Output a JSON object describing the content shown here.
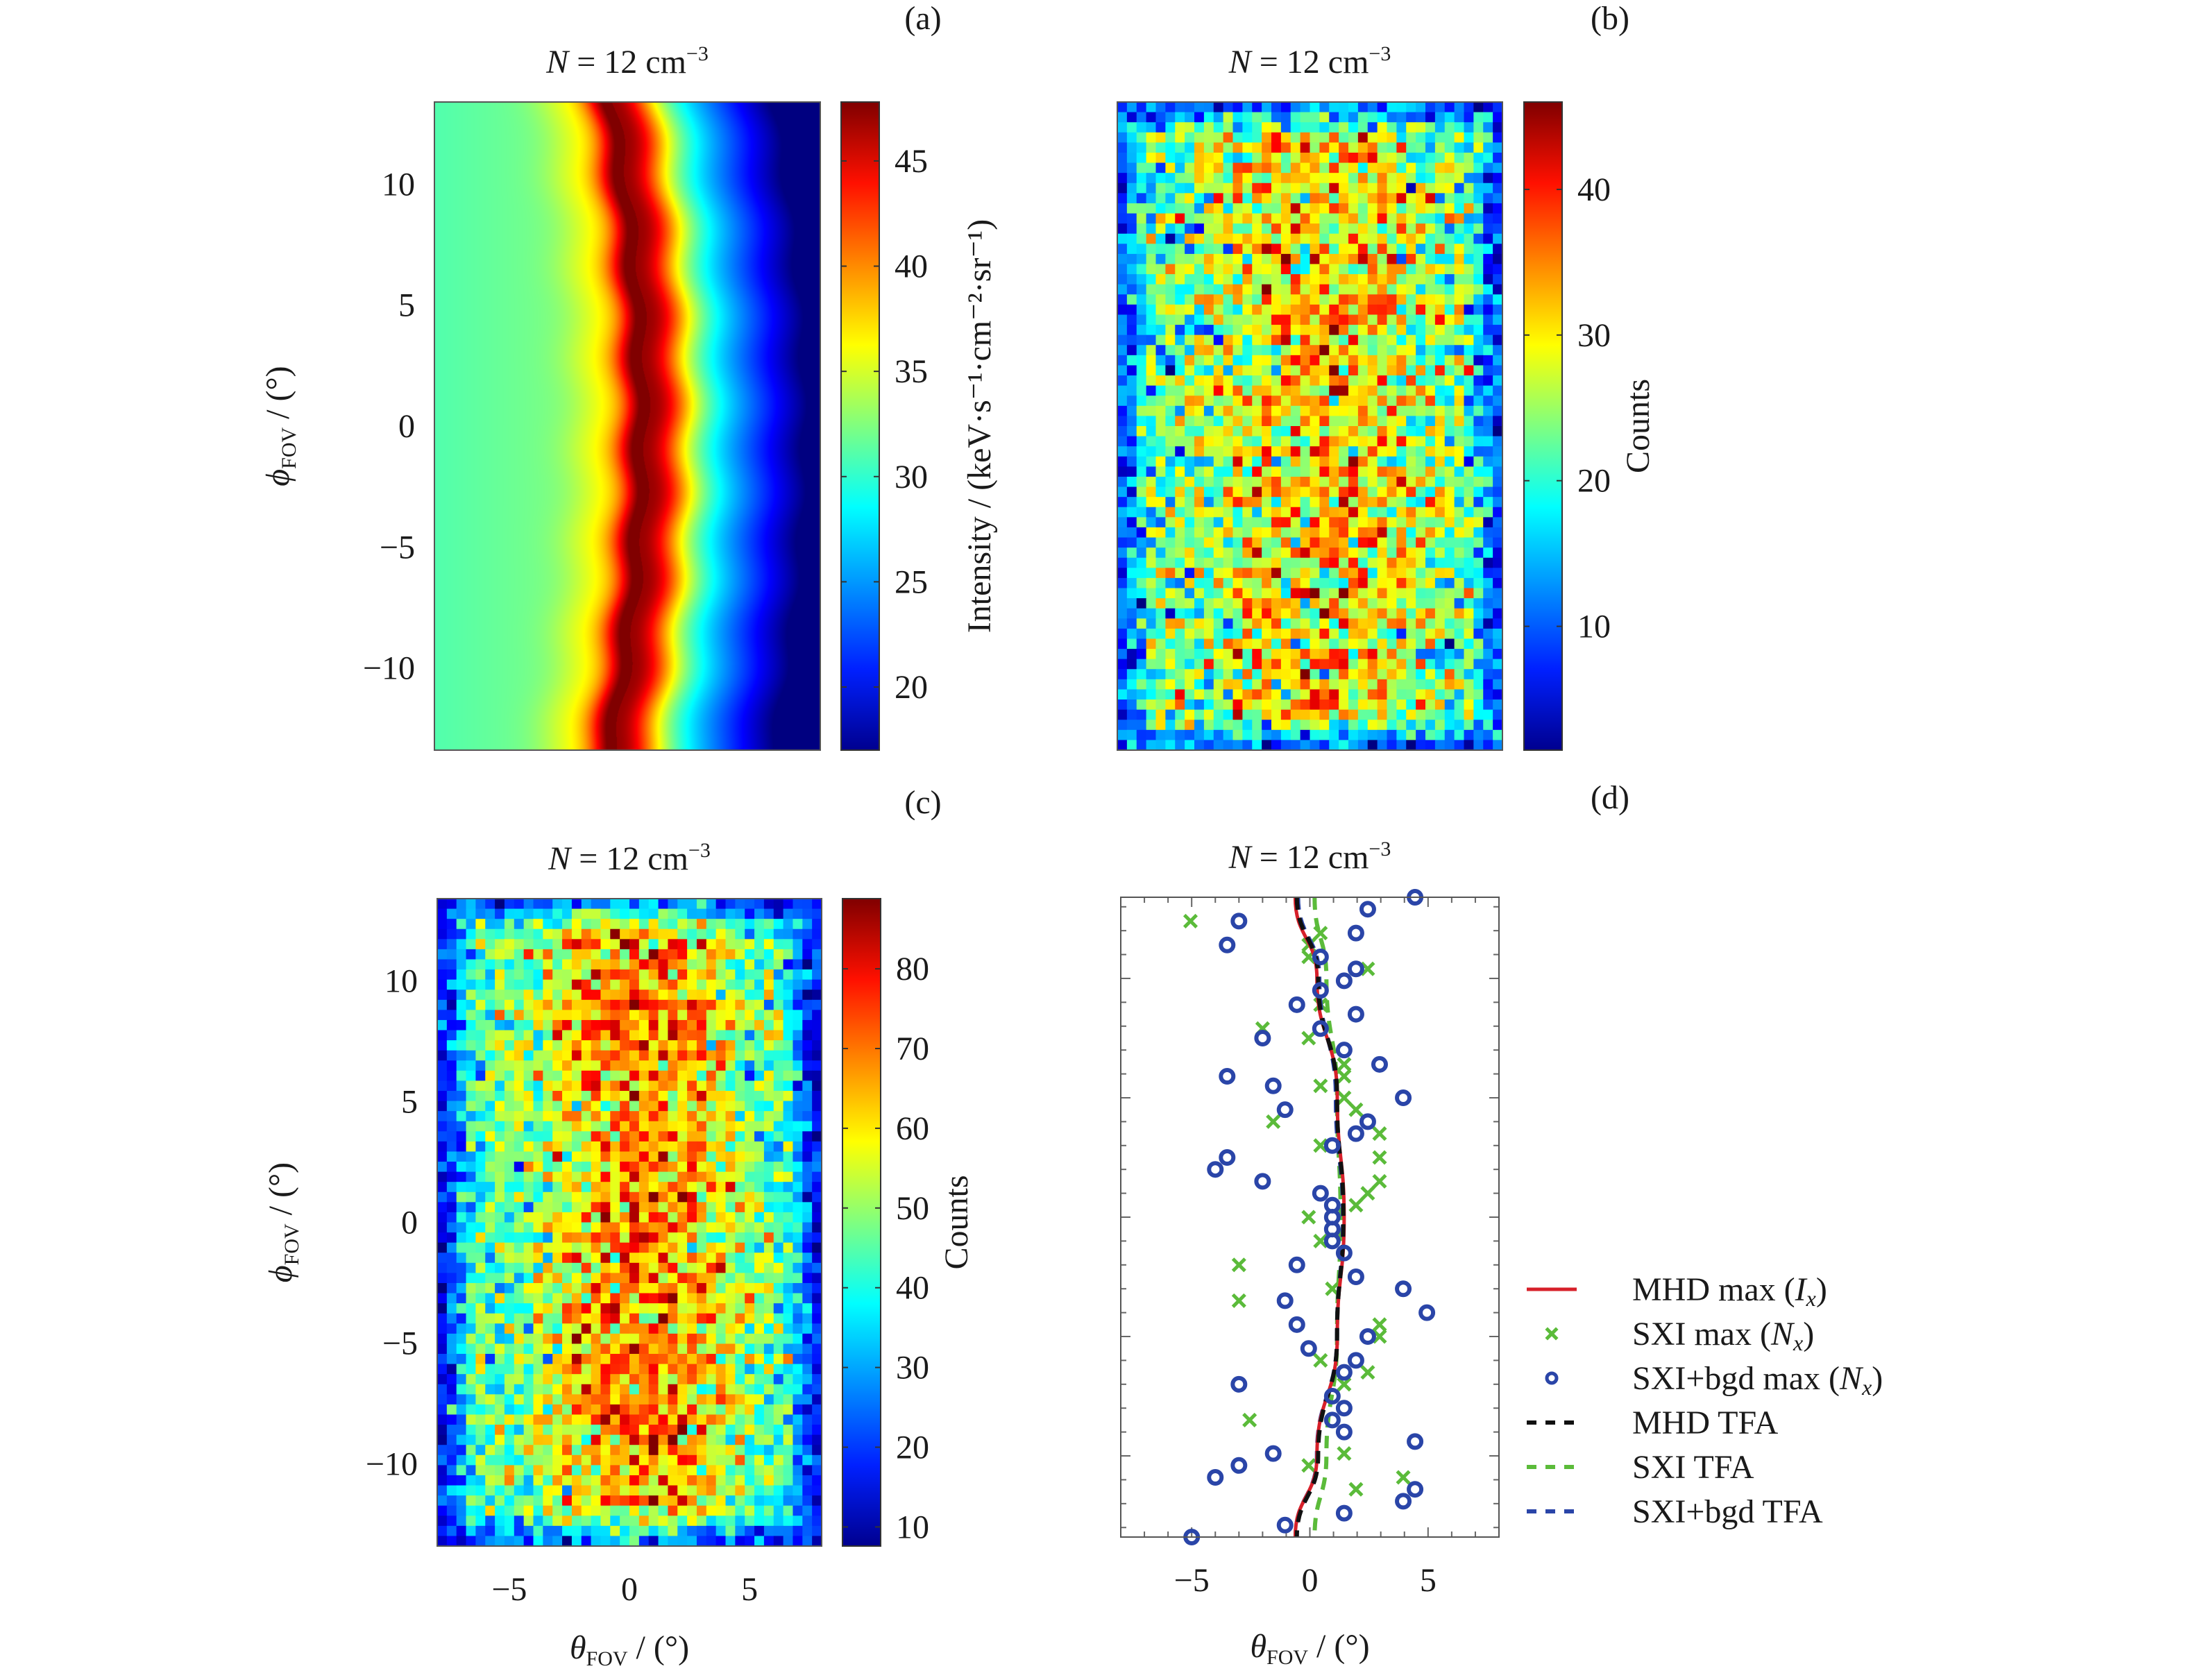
{
  "chart_data": [
    {
      "panel_label": "(a)",
      "type": "heatmap",
      "title": {
        "var": "N",
        "text": " = 12 cm",
        "sup": "−3"
      },
      "xlim": [
        -8,
        8
      ],
      "ylim": [
        -13.4,
        13.4
      ],
      "yticks": [
        10,
        5,
        0,
        -5,
        -10
      ],
      "ylabel": {
        "sym": "ϕ",
        "sub": "FOV",
        "rest": " / (°)"
      },
      "colormap": "jet",
      "colorbar": {
        "range": [
          17,
          47.8
        ],
        "ticks": [
          45,
          40,
          35,
          30,
          25,
          20
        ],
        "label": "Intensity / (keV·s⁻¹·cm⁻²·sr⁻¹)"
      },
      "description_values": {
        "peak_intensity": 47,
        "left_background": 31,
        "right_edge": 18
      }
    },
    {
      "panel_label": "(b)",
      "type": "heatmap",
      "title": {
        "var": "N",
        "text": " = 12 cm",
        "sup": "−3"
      },
      "xlim": [
        -8,
        8
      ],
      "ylim": [
        -13.4,
        13.4
      ],
      "colormap": "jet",
      "colorbar": {
        "range": [
          1.5,
          46
        ],
        "ticks": [
          40,
          30,
          20,
          10
        ],
        "label": "Counts"
      },
      "grid": [
        40,
        64
      ],
      "description_values": {
        "edge_counts": 8,
        "center_counts": 30
      }
    },
    {
      "panel_label": "(c)",
      "type": "heatmap",
      "title": {
        "var": "N",
        "text": " = 12 cm",
        "sup": "−3"
      },
      "xlim": [
        -8,
        8
      ],
      "ylim": [
        -13.4,
        13.4
      ],
      "xticks": [
        -5,
        0,
        5
      ],
      "yticks": [
        10,
        5,
        0,
        -5,
        -10
      ],
      "xlabel": {
        "sym": "θ",
        "sub": "FOV",
        "rest": " / (°)"
      },
      "ylabel": {
        "sym": "ϕ",
        "sub": "FOV",
        "rest": " / (°)"
      },
      "colormap": "jet",
      "colorbar": {
        "range": [
          7.6,
          88.8
        ],
        "ticks": [
          80,
          70,
          60,
          50,
          40,
          30,
          20,
          10
        ],
        "label": "Counts"
      },
      "grid": [
        40,
        64
      ],
      "description_values": {
        "edge_counts": 28,
        "center_counts": 68
      }
    },
    {
      "panel_label": "(d)",
      "type": "scatter",
      "title": {
        "var": "N",
        "text": " = 12 cm",
        "sup": "−3"
      },
      "xlim": [
        -8,
        8
      ],
      "ylim": [
        -13.4,
        13.4
      ],
      "xticks": [
        -5,
        0,
        5
      ],
      "xlabel": {
        "sym": "θ",
        "sub": "FOV",
        "rest": " / (°)"
      },
      "legend_placement": "outside-right-bottom",
      "colors": {
        "mhd": "#d7202a",
        "sxi": "#5bbb3a",
        "bgd": "#2a45a8",
        "black": "#111111"
      },
      "legend": [
        {
          "pre": "MHD max (",
          "var": "I",
          "sub": "x",
          "post": ")",
          "style": "solid",
          "color": "#d7202a"
        },
        {
          "pre": "SXI max (",
          "var": "N",
          "sub": "x",
          "post": ")",
          "style": "x-marker",
          "color": "#5bbb3a"
        },
        {
          "pre": "SXI+bgd max (",
          "var": "N",
          "sub": "x",
          "post": ")",
          "style": "circle-marker",
          "color": "#2a45a8"
        },
        {
          "pre": "MHD TFA",
          "var": "",
          "sub": "",
          "post": "",
          "style": "dashed",
          "color": "#111111"
        },
        {
          "pre": "SXI TFA",
          "var": "",
          "sub": "",
          "post": "",
          "style": "dashed",
          "color": "#5bbb3a"
        },
        {
          "pre": "SXI+bgd TFA",
          "var": "",
          "sub": "",
          "post": "",
          "style": "dashed",
          "color": "#2a45a8"
        }
      ],
      "series": [
        {
          "name": "MHD max (Ix)",
          "kind": "line",
          "y": [
            13.4,
            10,
            5,
            0,
            -5,
            -10,
            -13.4
          ],
          "x": [
            -0.62,
            0.3,
            1.16,
            1.45,
            1.16,
            0.3,
            -0.62
          ]
        },
        {
          "name": "MHD TFA",
          "kind": "line",
          "y": [
            13.4,
            10,
            5,
            0,
            -5,
            -10,
            -13.4
          ],
          "x": [
            -0.55,
            0.35,
            1.15,
            1.42,
            1.15,
            0.35,
            -0.55
          ]
        },
        {
          "name": "SXI TFA",
          "kind": "line",
          "y": [
            13.4,
            10,
            5,
            0,
            -5,
            -10,
            -13.4
          ],
          "x": [
            0.2,
            0.7,
            1.15,
            1.3,
            1.15,
            0.7,
            0.2
          ]
        },
        {
          "name": "SXI+bgd TFA",
          "kind": "line",
          "y": [
            13.4,
            10,
            5,
            0,
            -5,
            -10,
            -13.4
          ],
          "x": [
            -0.5,
            0.4,
            1.1,
            1.4,
            1.15,
            0.3,
            -0.6
          ]
        },
        {
          "name": "SXI max (Nx)",
          "kind": "scatter",
          "points": [
            [
              -5.05,
              12.4
            ],
            [
              0.45,
              11.9
            ],
            [
              -0.05,
              11.4
            ],
            [
              -0.05,
              10.9
            ],
            [
              2.45,
              10.4
            ],
            [
              0.45,
              8.9
            ],
            [
              -2.0,
              7.9
            ],
            [
              -0.05,
              7.5
            ],
            [
              1.45,
              6.4
            ],
            [
              1.45,
              5.9
            ],
            [
              0.45,
              5.5
            ],
            [
              1.45,
              5.0
            ],
            [
              1.95,
              4.5
            ],
            [
              -1.55,
              4.0
            ],
            [
              2.95,
              3.5
            ],
            [
              0.45,
              3.0
            ],
            [
              2.95,
              2.5
            ],
            [
              2.95,
              1.5
            ],
            [
              2.45,
              1.0
            ],
            [
              1.95,
              0.5
            ],
            [
              -0.05,
              0
            ],
            [
              0.45,
              -1.0
            ],
            [
              -3.0,
              -2.0
            ],
            [
              0.95,
              -3.0
            ],
            [
              -3.0,
              -3.5
            ],
            [
              2.95,
              -4.5
            ],
            [
              2.95,
              -5.0
            ],
            [
              0.45,
              -6.0
            ],
            [
              2.45,
              -6.5
            ],
            [
              1.45,
              -7.0
            ],
            [
              -2.55,
              -8.5
            ],
            [
              1.45,
              -9.9
            ],
            [
              -0.05,
              -10.4
            ],
            [
              3.95,
              -10.9
            ],
            [
              1.95,
              -11.4
            ]
          ]
        },
        {
          "name": "SXI+bgd max (Nx)",
          "kind": "scatter",
          "points": [
            [
              4.45,
              13.4
            ],
            [
              2.45,
              12.9
            ],
            [
              -3.0,
              12.4
            ],
            [
              -3.5,
              11.4
            ],
            [
              1.95,
              11.9
            ],
            [
              0.45,
              10.9
            ],
            [
              1.95,
              10.4
            ],
            [
              1.45,
              9.9
            ],
            [
              0.45,
              9.5
            ],
            [
              -0.55,
              8.9
            ],
            [
              1.95,
              8.5
            ],
            [
              0.45,
              7.9
            ],
            [
              -2.0,
              7.5
            ],
            [
              1.45,
              7.0
            ],
            [
              2.95,
              6.4
            ],
            [
              -3.5,
              5.9
            ],
            [
              -1.55,
              5.5
            ],
            [
              3.95,
              5.0
            ],
            [
              -1.05,
              4.5
            ],
            [
              2.45,
              4.0
            ],
            [
              1.95,
              3.5
            ],
            [
              0.95,
              3.0
            ],
            [
              -3.5,
              2.5
            ],
            [
              -4.0,
              2.0
            ],
            [
              -2.0,
              1.5
            ],
            [
              0.45,
              1.0
            ],
            [
              0.95,
              0.5
            ],
            [
              0.95,
              0
            ],
            [
              0.95,
              -0.5
            ],
            [
              0.95,
              -1.0
            ],
            [
              1.45,
              -1.5
            ],
            [
              -0.55,
              -2.0
            ],
            [
              1.95,
              -2.5
            ],
            [
              3.95,
              -3.0
            ],
            [
              -1.05,
              -3.5
            ],
            [
              4.95,
              -4.0
            ],
            [
              -0.55,
              -4.5
            ],
            [
              2.45,
              -5.0
            ],
            [
              -0.05,
              -5.5
            ],
            [
              1.95,
              -6.0
            ],
            [
              1.45,
              -6.5
            ],
            [
              -3.0,
              -7.0
            ],
            [
              0.95,
              -7.5
            ],
            [
              1.45,
              -8.0
            ],
            [
              0.95,
              -8.5
            ],
            [
              1.45,
              -9.0
            ],
            [
              4.45,
              -9.4
            ],
            [
              -1.55,
              -9.9
            ],
            [
              -3.0,
              -10.4
            ],
            [
              -4.0,
              -10.9
            ],
            [
              4.45,
              -11.4
            ],
            [
              3.95,
              -11.9
            ],
            [
              1.45,
              -12.4
            ],
            [
              -1.05,
              -12.9
            ],
            [
              -5.0,
              -13.4
            ]
          ]
        }
      ]
    }
  ]
}
